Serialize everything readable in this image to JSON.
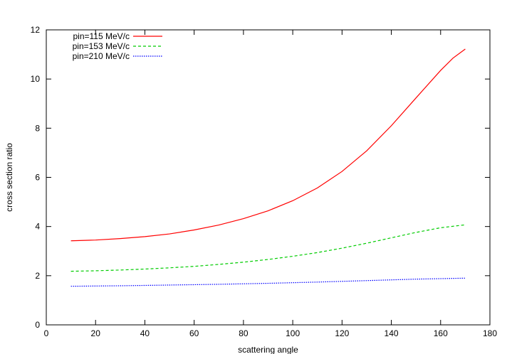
{
  "chart_data": {
    "type": "line",
    "title": "",
    "xlabel": "scattering angle",
    "ylabel": "cross section ratio",
    "xlim": [
      0,
      180
    ],
    "ylim": [
      0,
      12
    ],
    "xticks": [
      0,
      20,
      40,
      60,
      80,
      100,
      120,
      140,
      160,
      180
    ],
    "yticks": [
      0,
      2,
      4,
      6,
      8,
      10,
      12
    ],
    "grid": false,
    "legend_position": "top-left",
    "series": [
      {
        "name": "pin=115 MeV/c",
        "color": "#ff0000",
        "dash": "solid",
        "x": [
          10,
          20,
          30,
          40,
          50,
          60,
          70,
          80,
          90,
          100,
          110,
          120,
          130,
          140,
          150,
          160,
          165,
          170
        ],
        "y": [
          3.42,
          3.45,
          3.51,
          3.59,
          3.7,
          3.86,
          4.06,
          4.32,
          4.64,
          5.05,
          5.57,
          6.24,
          7.08,
          8.1,
          9.23,
          10.35,
          10.85,
          11.22
        ]
      },
      {
        "name": "pin=153 MeV/c",
        "color": "#00cc00",
        "dash": "dashed",
        "x": [
          10,
          20,
          30,
          40,
          50,
          60,
          70,
          80,
          90,
          100,
          110,
          120,
          130,
          140,
          150,
          160,
          170
        ],
        "y": [
          2.18,
          2.2,
          2.23,
          2.27,
          2.32,
          2.38,
          2.46,
          2.55,
          2.66,
          2.79,
          2.94,
          3.12,
          3.32,
          3.54,
          3.76,
          3.95,
          4.07
        ]
      },
      {
        "name": "pin=210 MeV/c",
        "color": "#0000ff",
        "dash": "dotted",
        "x": [
          10,
          30,
          50,
          70,
          90,
          110,
          130,
          150,
          170
        ],
        "y": [
          1.57,
          1.59,
          1.62,
          1.65,
          1.69,
          1.74,
          1.8,
          1.86,
          1.9
        ]
      }
    ]
  }
}
